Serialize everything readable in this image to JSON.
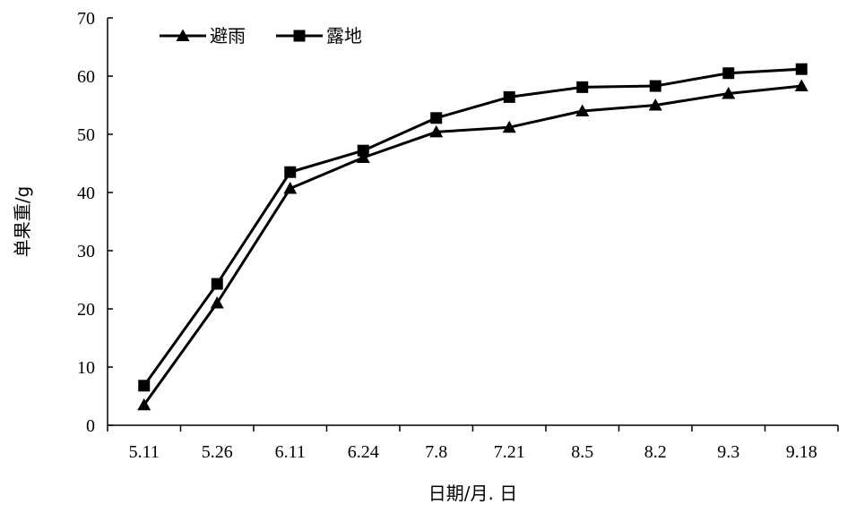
{
  "chart_data": {
    "type": "line",
    "title": "",
    "xlabel": "日期/月. 日",
    "ylabel": "单果重/g",
    "categories": [
      "5.11",
      "5.26",
      "6.11",
      "6.24",
      "7.8",
      "7.21",
      "8.5",
      "8.2",
      "9.3",
      "9.18"
    ],
    "ylim": [
      0,
      70
    ],
    "yticks": [
      0,
      10,
      20,
      30,
      40,
      50,
      60,
      70
    ],
    "grid": false,
    "legend_position": "top-left",
    "series": [
      {
        "name": "避雨",
        "marker": "triangle",
        "color": "#000000",
        "values": [
          3.5,
          21,
          40.7,
          46,
          50.4,
          51.2,
          54,
          55,
          57,
          58.3
        ]
      },
      {
        "name": "露地",
        "marker": "square",
        "color": "#000000",
        "values": [
          6.8,
          24.3,
          43.5,
          47.2,
          52.8,
          56.4,
          58.1,
          58.3,
          60.5,
          61.2
        ]
      }
    ]
  }
}
